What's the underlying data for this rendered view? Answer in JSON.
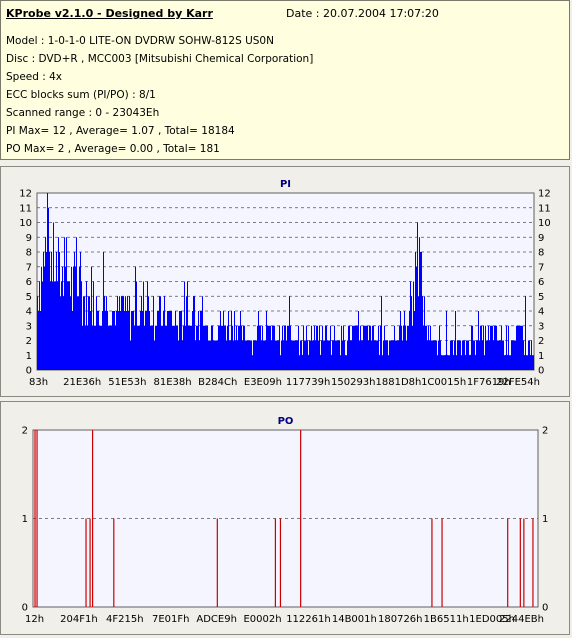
{
  "header": {
    "title": "KProbe v2.1.0 - Designed by Karr",
    "date": "Date : 20.07.2004 17:07:20",
    "lines": [
      "Model : 1-0-1-0 LITE-ON DVDRW SOHW-812S  US0N",
      "Disc : DVD+R , MCC003 [Mitsubishi Chemical Corporation]",
      "Speed : 4x",
      "ECC blocks sum (PI/PO) : 8/1",
      "Scanned range : 0 - 23043Eh",
      "PI Max= 12 , Average= 1.07 , Total= 18184",
      "PO Max= 2 , Average= 0.00 , Total= 181"
    ]
  },
  "chart_data": [
    {
      "type": "bar",
      "title": "PI",
      "ylim": [
        0,
        12
      ],
      "yticks": [
        0,
        1,
        2,
        3,
        4,
        5,
        6,
        7,
        8,
        9,
        10,
        11,
        12
      ],
      "xtick_labels": [
        "83h",
        "21E36h",
        "51E53h",
        "81E38h",
        "B284Ch",
        "E3E09h",
        "117739h",
        "150293h",
        "1881D8h",
        "1C0015h",
        "1F7619h",
        "22FE54h"
      ],
      "grid": true,
      "color": "#0000ff",
      "profile": [
        [
          0,
          7
        ],
        [
          0.01,
          9
        ],
        [
          0.02,
          11
        ],
        [
          0.03,
          10
        ],
        [
          0.04,
          9
        ],
        [
          0.05,
          8
        ],
        [
          0.06,
          9
        ],
        [
          0.07,
          7
        ],
        [
          0.08,
          8
        ],
        [
          0.09,
          7
        ],
        [
          0.1,
          6
        ],
        [
          0.11,
          7
        ],
        [
          0.12,
          6
        ],
        [
          0.13,
          7
        ],
        [
          0.14,
          6
        ],
        [
          0.15,
          6
        ],
        [
          0.16,
          5
        ],
        [
          0.17,
          6
        ],
        [
          0.18,
          5
        ],
        [
          0.2,
          5
        ],
        [
          0.22,
          6
        ],
        [
          0.24,
          5
        ],
        [
          0.26,
          5
        ],
        [
          0.28,
          4
        ],
        [
          0.3,
          5
        ],
        [
          0.32,
          4
        ],
        [
          0.34,
          4
        ],
        [
          0.36,
          4
        ],
        [
          0.38,
          4
        ],
        [
          0.4,
          4
        ],
        [
          0.42,
          3
        ],
        [
          0.44,
          3
        ],
        [
          0.46,
          3
        ],
        [
          0.48,
          3
        ],
        [
          0.5,
          3
        ],
        [
          0.52,
          3
        ],
        [
          0.54,
          3
        ],
        [
          0.56,
          3
        ],
        [
          0.58,
          3
        ],
        [
          0.6,
          3
        ],
        [
          0.62,
          3
        ],
        [
          0.64,
          3
        ],
        [
          0.66,
          3
        ],
        [
          0.68,
          3
        ],
        [
          0.7,
          3
        ],
        [
          0.72,
          3
        ],
        [
          0.74,
          4
        ],
        [
          0.75,
          5
        ],
        [
          0.76,
          7
        ],
        [
          0.77,
          10
        ],
        [
          0.78,
          5
        ],
        [
          0.79,
          3
        ],
        [
          0.8,
          2
        ],
        [
          0.82,
          2
        ],
        [
          0.84,
          2
        ],
        [
          0.86,
          2
        ],
        [
          0.88,
          3
        ],
        [
          0.9,
          3
        ],
        [
          0.92,
          3
        ],
        [
          0.94,
          2
        ],
        [
          0.96,
          3
        ],
        [
          0.98,
          3
        ],
        [
          1.0,
          2
        ]
      ]
    },
    {
      "type": "bar",
      "title": "PO",
      "ylim": [
        0,
        2
      ],
      "yticks": [
        0,
        1,
        2
      ],
      "xtick_labels": [
        "12h",
        "204F1h",
        "4F215h",
        "7E01Fh",
        "ADCE9h",
        "E0002h",
        "112261h",
        "14B001h",
        "180726h",
        "1B6511h",
        "1ED005h",
        "2244EBh"
      ],
      "grid": true,
      "color": "#cc0000",
      "spikes": [
        [
          0.004,
          2
        ],
        [
          0.008,
          2
        ],
        [
          0.105,
          1
        ],
        [
          0.113,
          1
        ],
        [
          0.118,
          2
        ],
        [
          0.16,
          1
        ],
        [
          0.365,
          1
        ],
        [
          0.48,
          1
        ],
        [
          0.49,
          1
        ],
        [
          0.53,
          2
        ],
        [
          0.79,
          1
        ],
        [
          0.81,
          1
        ],
        [
          0.94,
          1
        ],
        [
          0.965,
          1
        ],
        [
          0.972,
          1
        ],
        [
          0.99,
          1
        ]
      ]
    }
  ]
}
